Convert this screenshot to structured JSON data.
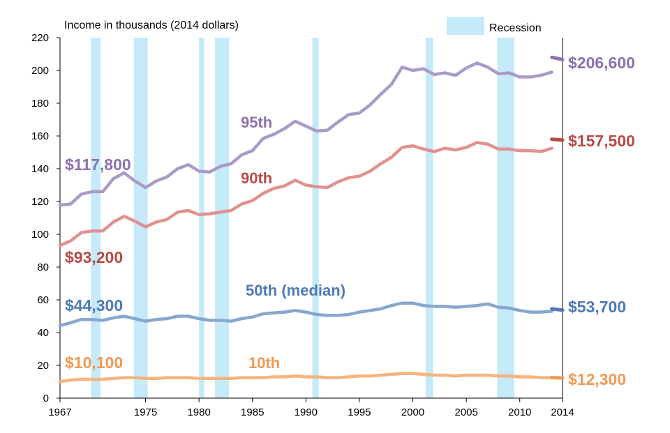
{
  "chart_data": {
    "type": "line",
    "ylabel": "Income in thousands (2014 dollars)",
    "ylim": [
      0,
      220
    ],
    "yticks": [
      0,
      20,
      40,
      60,
      80,
      100,
      120,
      140,
      160,
      180,
      200,
      220
    ],
    "xlim": [
      1967,
      2014
    ],
    "xticks": [
      1967,
      1975,
      1980,
      1985,
      1990,
      1995,
      2000,
      2005,
      2010,
      2014
    ],
    "grid": false,
    "legend": {
      "label": "Recession",
      "placement": "top-right",
      "color": "#c5eafa"
    },
    "recessions": [
      [
        1969.9,
        1970.8
      ],
      [
        1973.9,
        1975.2
      ],
      [
        1980.0,
        1980.5
      ],
      [
        1981.5,
        1982.8
      ],
      [
        1990.6,
        1991.2
      ],
      [
        2001.2,
        2001.9
      ],
      [
        2007.9,
        2009.5
      ]
    ],
    "series": [
      {
        "name": "95th",
        "color": "#a99bc7",
        "label_color": "#8b72b0",
        "start_label": "$117,800",
        "end_label": "$206,600",
        "end_segment": [
          [
            2013,
            208
          ],
          [
            2014,
            206.6
          ]
        ],
        "end_color": "#8b72b0",
        "x": [
          1967,
          1968,
          1969,
          1970,
          1971,
          1972,
          1973,
          1974,
          1975,
          1976,
          1977,
          1978,
          1979,
          1980,
          1981,
          1982,
          1983,
          1984,
          1985,
          1986,
          1987,
          1988,
          1989,
          1990,
          1991,
          1992,
          1993,
          1994,
          1995,
          1996,
          1997,
          1998,
          1999,
          2000,
          2001,
          2002,
          2003,
          2004,
          2005,
          2006,
          2007,
          2008,
          2009,
          2010,
          2011,
          2012,
          2013
        ],
        "values": [
          117.8,
          118.5,
          124.5,
          126,
          126,
          134,
          137.5,
          132.5,
          128.5,
          132.5,
          135,
          140,
          142.5,
          138.5,
          138,
          141.5,
          143,
          148.5,
          151,
          158.5,
          161,
          164.5,
          169,
          166,
          163,
          163.5,
          168.5,
          173,
          174,
          179,
          185.5,
          191.5,
          202,
          200,
          201,
          197.5,
          198.5,
          197,
          201.5,
          204.5,
          202,
          198,
          198.5,
          196,
          196,
          197,
          199
        ]
      },
      {
        "name": "90th",
        "color": "#e0928e",
        "label_color": "#b84a45",
        "start_label": "$93,200",
        "end_label": "$157,500",
        "end_segment": [
          [
            2013,
            158
          ],
          [
            2014,
            157.5
          ]
        ],
        "end_color": "#b84a45",
        "x": [
          1967,
          1968,
          1969,
          1970,
          1971,
          1972,
          1973,
          1974,
          1975,
          1976,
          1977,
          1978,
          1979,
          1980,
          1981,
          1982,
          1983,
          1984,
          1985,
          1986,
          1987,
          1988,
          1989,
          1990,
          1991,
          1992,
          1993,
          1994,
          1995,
          1996,
          1997,
          1998,
          1999,
          2000,
          2001,
          2002,
          2003,
          2004,
          2005,
          2006,
          2007,
          2008,
          2009,
          2010,
          2011,
          2012,
          2013
        ],
        "values": [
          93.2,
          96,
          101,
          102,
          102,
          107.5,
          111,
          108,
          104.5,
          107.5,
          109,
          113.5,
          114.5,
          112,
          112.5,
          113.5,
          114.5,
          118.5,
          120.5,
          125,
          128,
          129.5,
          133,
          130,
          129,
          128.5,
          132,
          134.5,
          135.5,
          138.5,
          143,
          147,
          153,
          154,
          152,
          150.5,
          152.5,
          151.5,
          153,
          156,
          155,
          152,
          152,
          151,
          151,
          150.5,
          152.5
        ]
      },
      {
        "name": "50th (median)",
        "color": "#87a7cf",
        "label_color": "#4e7ab5",
        "start_label": "$44,300",
        "end_label": "$53,700",
        "end_segment": [
          [
            2013,
            54.5
          ],
          [
            2014,
            53.7
          ]
        ],
        "end_color": "#4e7ab5",
        "x": [
          1967,
          1968,
          1969,
          1970,
          1971,
          1972,
          1973,
          1974,
          1975,
          1976,
          1977,
          1978,
          1979,
          1980,
          1981,
          1982,
          1983,
          1984,
          1985,
          1986,
          1987,
          1988,
          1989,
          1990,
          1991,
          1992,
          1993,
          1994,
          1995,
          1996,
          1997,
          1998,
          1999,
          2000,
          2001,
          2002,
          2003,
          2004,
          2005,
          2006,
          2007,
          2008,
          2009,
          2010,
          2011,
          2012,
          2013
        ],
        "values": [
          44.3,
          46,
          48,
          48,
          47.5,
          49,
          50,
          48.5,
          47,
          48,
          48.5,
          50,
          50,
          48.5,
          47.5,
          47.5,
          47,
          48.5,
          49.5,
          51.5,
          52,
          52.5,
          53.5,
          52.5,
          51,
          50.5,
          50.5,
          51,
          52.5,
          53.5,
          54.5,
          56.5,
          58,
          58,
          56.5,
          56,
          56,
          55.5,
          56,
          56.5,
          57.5,
          55.5,
          55,
          53.5,
          52.5,
          52.5,
          53
        ]
      },
      {
        "name": "10th",
        "color": "#f4b47e",
        "label_color": "#f09a56",
        "start_label": "$10,100",
        "end_label": "$12,300",
        "end_segment": [
          [
            2013,
            12.5
          ],
          [
            2014,
            12.3
          ]
        ],
        "end_color": "#f09a56",
        "x": [
          1967,
          1968,
          1969,
          1970,
          1971,
          1972,
          1973,
          1974,
          1975,
          1976,
          1977,
          1978,
          1979,
          1980,
          1981,
          1982,
          1983,
          1984,
          1985,
          1986,
          1987,
          1988,
          1989,
          1990,
          1991,
          1992,
          1993,
          1994,
          1995,
          1996,
          1997,
          1998,
          1999,
          2000,
          2001,
          2002,
          2003,
          2004,
          2005,
          2006,
          2007,
          2008,
          2009,
          2010,
          2011,
          2012,
          2013
        ],
        "values": [
          10.1,
          11,
          11.5,
          11.5,
          11.5,
          12,
          12.5,
          12.5,
          12,
          12,
          12.5,
          12.5,
          12.5,
          12,
          12,
          12,
          12,
          12.5,
          12.5,
          12.5,
          13,
          13,
          13.5,
          13,
          13,
          12.5,
          12.5,
          13,
          13.5,
          13.5,
          14,
          14.5,
          15,
          15,
          14.5,
          14,
          14,
          13.5,
          14,
          14,
          14,
          13.5,
          13.5,
          13,
          13,
          12.5,
          12.5
        ]
      }
    ]
  }
}
